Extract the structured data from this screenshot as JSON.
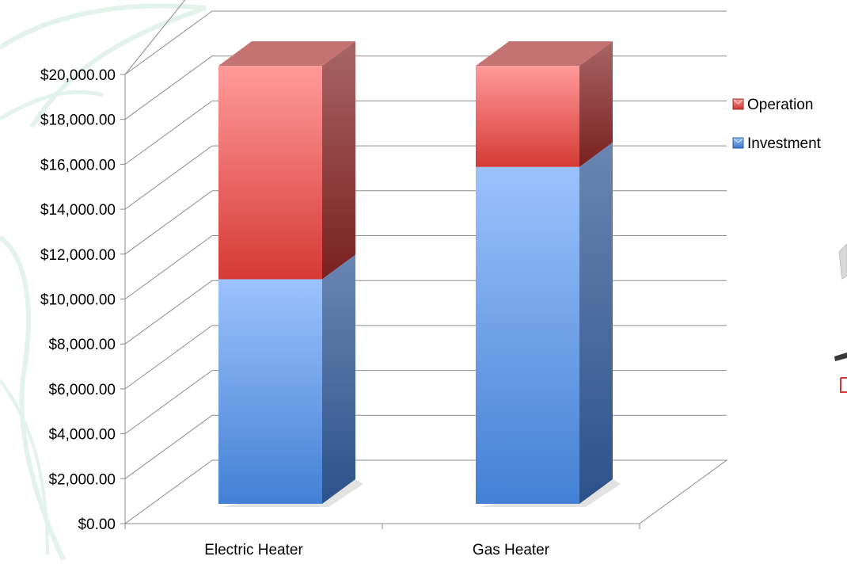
{
  "chart_data": {
    "type": "bar",
    "stacked": true,
    "three_d": true,
    "categories": [
      "Electric Heater",
      "Gas Heater"
    ],
    "series": [
      {
        "name": "Investment",
        "values": [
          10000,
          15000
        ],
        "color": "#4A86D8"
      },
      {
        "name": "Operation",
        "values": [
          9500,
          4500
        ],
        "color": "#D9403A"
      }
    ],
    "y_ticks": [
      "$0.00",
      "$2,000.00",
      "$4,000.00",
      "$6,000.00",
      "$8,000.00",
      "$10,000.00",
      "$12,000.00",
      "$14,000.00",
      "$16,000.00",
      "$18,000.00",
      "$20,000.00"
    ],
    "ylim": [
      0,
      20000
    ],
    "grid": true,
    "legend_position": "right"
  },
  "colors": {
    "grid": "#8c8c8c",
    "axis": "#8c8c8c",
    "text": "#000000",
    "background_decor": "#e3f2ea"
  },
  "background_icon": "leaf-watermark-icon",
  "legend_icon": "legend-swatch-icon"
}
